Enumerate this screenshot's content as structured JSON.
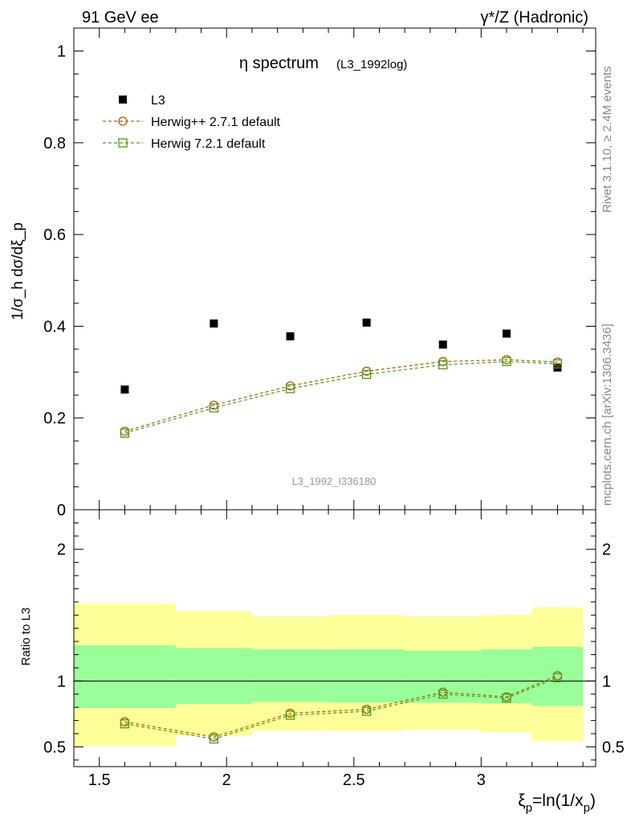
{
  "header": {
    "left": "91 GeV ee",
    "right": "γ*/Z (Hadronic)"
  },
  "side_labels": {
    "rivet": "Rivet 3.1.10, ≥ 2.4M events",
    "mcplots": "mcplots.cern.ch [arXiv:1306.3436]"
  },
  "main_plot": {
    "title_main": "η spectrum",
    "title_sub": "(L3_1992log)",
    "watermark": "L3_1992_I336180",
    "ylabel": "1/σ_h dσ/dξ_p",
    "yticks": [
      {
        "v": 0,
        "label": "0"
      },
      {
        "v": 0.2,
        "label": "0.2"
      },
      {
        "v": 0.4,
        "label": "0.4"
      },
      {
        "v": 0.6,
        "label": "0.6"
      },
      {
        "v": 0.8,
        "label": "0.8"
      },
      {
        "v": 1.0,
        "label": "1"
      }
    ]
  },
  "ratio_plot": {
    "ylabel": "Ratio to L3",
    "yticks": [
      {
        "v": 0.5,
        "label": "0.5"
      },
      {
        "v": 1.0,
        "label": "1"
      },
      {
        "v": 2.0,
        "label": "2"
      }
    ]
  },
  "xaxis": {
    "label_main": "ξ",
    "label_sub": "p",
    "label_rest": "=ln(1/x",
    "label_sub2": "p",
    "label_close": ")",
    "ticks": [
      {
        "v": 1.5,
        "label": "1.5"
      },
      {
        "v": 2.0,
        "label": "2"
      },
      {
        "v": 2.5,
        "label": "2.5"
      },
      {
        "v": 3.0,
        "label": "3"
      }
    ]
  },
  "legend": {
    "items": [
      {
        "name": "L3",
        "marker": "filled-square",
        "color": "#000000"
      },
      {
        "name": "Herwig++ 2.7.1 default",
        "marker": "open-circle",
        "color": "#b35900"
      },
      {
        "name": "Herwig 7.2.1 default",
        "marker": "open-square",
        "color": "#4c9a1c"
      }
    ]
  },
  "chart_data": {
    "type": "scatter",
    "x_range": [
      1.4,
      3.45
    ],
    "main_ylim": [
      0,
      1.05
    ],
    "ratio_ylim": [
      0.35,
      2.3
    ],
    "bin_edges": [
      1.4,
      1.8,
      2.1,
      2.4,
      2.7,
      3.0,
      3.2,
      3.4
    ],
    "x": [
      1.6,
      1.95,
      2.25,
      2.55,
      2.85,
      3.1,
      3.3
    ],
    "series": [
      {
        "name": "L3",
        "values": [
          0.262,
          0.406,
          0.378,
          0.408,
          0.36,
          0.384,
          0.31
        ]
      },
      {
        "name": "Herwig++ 2.7.1 default",
        "values": [
          0.171,
          0.228,
          0.27,
          0.302,
          0.323,
          0.327,
          0.322
        ]
      },
      {
        "name": "Herwig 7.2.1 default",
        "values": [
          0.167,
          0.222,
          0.264,
          0.295,
          0.316,
          0.323,
          0.318
        ]
      }
    ],
    "ratio_series": [
      {
        "name": "Herwig++ 2.7.1 default",
        "values": [
          0.69,
          0.575,
          0.755,
          0.785,
          0.915,
          0.88,
          1.04
        ]
      },
      {
        "name": "Herwig 7.2.1 default",
        "values": [
          0.675,
          0.56,
          0.74,
          0.77,
          0.9,
          0.87,
          1.025
        ]
      }
    ],
    "ratio_bands": {
      "yellow_upper": [
        1.59,
        1.53,
        1.49,
        1.5,
        1.49,
        1.5,
        1.56
      ],
      "yellow_lower": [
        0.505,
        0.585,
        0.625,
        0.62,
        0.63,
        0.61,
        0.545
      ],
      "green_upper": [
        1.27,
        1.25,
        1.24,
        1.24,
        1.23,
        1.24,
        1.26
      ],
      "green_lower": [
        0.795,
        0.825,
        0.84,
        0.835,
        0.835,
        0.83,
        0.81
      ]
    },
    "grid": false,
    "legend_position": "top-left"
  }
}
